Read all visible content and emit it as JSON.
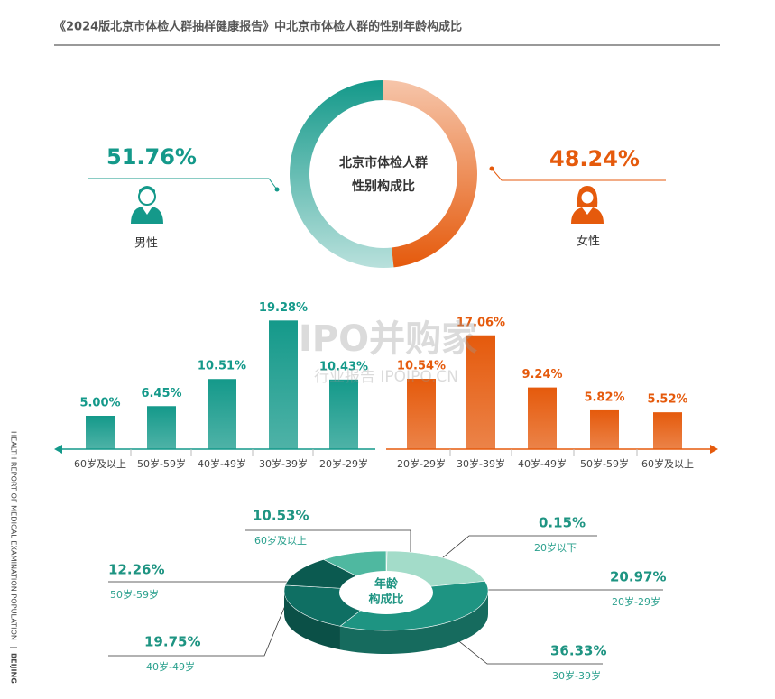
{
  "header": {
    "title": "《2024版北京市体检人群抽样健康报告》中北京市体检人群的性别年龄构成比"
  },
  "side_text": [
    "HEALTH REPORT OF MEDICAL EXAMINATION POPULATION",
    "BEIJING"
  ],
  "watermark": [
    "IPO并购家",
    "行业报告 IPOIPO.CN"
  ],
  "chart_data": [
    {
      "type": "donut",
      "center_label": [
        "北京市体检人群",
        "性别构成比"
      ],
      "categories": [
        "男性",
        "女性"
      ],
      "values": [
        51.76,
        48.24
      ],
      "value_labels": [
        "51.76%",
        "48.24%"
      ],
      "colors": [
        "#14998a",
        "#e55a0c"
      ]
    },
    {
      "type": "bar",
      "categories": [
        "60岁及以上",
        "50岁-59岁",
        "40岁-49岁",
        "30岁-39岁",
        "20岁-29岁"
      ],
      "values": [
        5.0,
        6.45,
        10.51,
        19.28,
        10.43
      ],
      "value_labels": [
        "5.00%",
        "6.45%",
        "10.51%",
        "19.28%",
        "10.43%"
      ],
      "color": "#14998a"
    },
    {
      "type": "bar",
      "categories": [
        "20岁-29岁",
        "30岁-39岁",
        "40岁-49岁",
        "50岁-59岁",
        "60岁及以上"
      ],
      "values": [
        10.54,
        17.06,
        9.24,
        5.82,
        5.52
      ],
      "value_labels": [
        "10.54%",
        "17.06%",
        "9.24%",
        "5.82%",
        "5.52%"
      ],
      "color": "#e55a0c"
    },
    {
      "type": "pie3d",
      "center_label": [
        "年龄",
        "构成比"
      ],
      "categories": [
        "20岁以下",
        "20岁-29岁",
        "30岁-39岁",
        "40岁-49岁",
        "50岁-59岁",
        "60岁及以上"
      ],
      "values": [
        0.15,
        20.97,
        36.33,
        19.75,
        12.26,
        10.53
      ],
      "value_labels": [
        "0.15%",
        "20.97%",
        "36.33%",
        "19.75%",
        "12.26%",
        "10.53%"
      ],
      "colors": [
        "#2a8376",
        "#a3dcc9",
        "#1e9482",
        "#0f6f63",
        "#0b5a50",
        "#4fb8a0"
      ]
    }
  ]
}
